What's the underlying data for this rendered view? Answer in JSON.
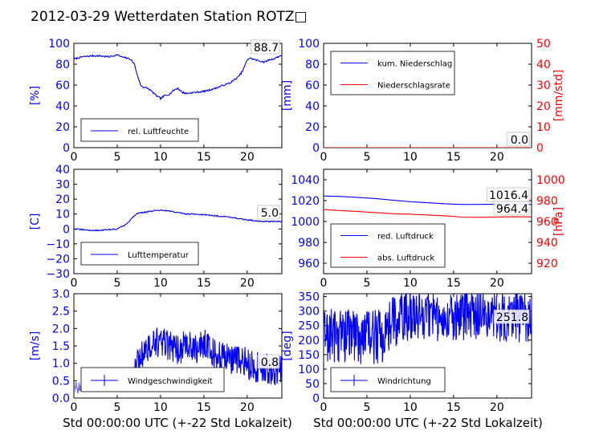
{
  "title": "2012-03-29 Wetterdaten Station ROTZ□",
  "xlabel": "Std 00:00:00 UTC (+-22 Std Lokalzeit)",
  "colors": {
    "primary": "#0000ff",
    "secondary": "#ff0000",
    "light": "#7777ff"
  },
  "chart_data": [
    {
      "type": "line",
      "title": "",
      "ylabel": "[%]",
      "ylim": [
        0,
        100
      ],
      "yticks": [
        0,
        20,
        40,
        60,
        80,
        100
      ],
      "xlim": [
        0,
        24
      ],
      "xticks": [
        0,
        5,
        10,
        15,
        20
      ],
      "current_value": "88.7",
      "legend_position": "lower-left",
      "series": [
        {
          "name": "rel. Luftfeuchte",
          "color": "#0000ff",
          "noise": 0.8,
          "x": [
            0,
            1,
            2,
            3,
            4,
            5,
            5.5,
            6,
            6.5,
            7,
            7.3,
            7.7,
            8,
            8.5,
            9,
            9.5,
            10,
            10.5,
            11,
            11.5,
            12,
            12.5,
            13,
            14,
            15,
            16,
            17,
            18,
            19,
            19.5,
            20,
            20.3,
            21,
            22,
            22.5,
            23,
            24
          ],
          "y": [
            85,
            87,
            88,
            88,
            87,
            89,
            87,
            86,
            85,
            80,
            70,
            60,
            58,
            57,
            54,
            50,
            47,
            50,
            51,
            55,
            57,
            53,
            52,
            53,
            54,
            56,
            59,
            62,
            68,
            74,
            84,
            86,
            84,
            82,
            84,
            85,
            88.7
          ]
        }
      ]
    },
    {
      "type": "line",
      "title": "",
      "ylabel": "[mm]",
      "ylim": [
        0,
        100
      ],
      "yticks": [
        0,
        20,
        40,
        60,
        80,
        100
      ],
      "y2label": "[mm/std]",
      "y2lim": [
        0,
        50
      ],
      "y2ticks": [
        0,
        10,
        20,
        30,
        40,
        50
      ],
      "xlim": [
        0,
        24
      ],
      "xticks": [
        0,
        5,
        10,
        15,
        20
      ],
      "current_values": [
        "0.0",
        "0.0"
      ],
      "legend_position": "upper-left",
      "series": [
        {
          "name": "kum. Niederschlag",
          "color": "#0000ff",
          "axis": "left",
          "x": [
            0,
            24
          ],
          "y": [
            0,
            0
          ]
        },
        {
          "name": "Niederschlagsrate",
          "color": "#ff0000",
          "axis": "right",
          "x": [
            0,
            24
          ],
          "y": [
            0,
            0
          ]
        }
      ]
    },
    {
      "type": "line",
      "title": "",
      "ylabel": "[C]",
      "ylim": [
        -30,
        40
      ],
      "yticks": [
        -30,
        -20,
        -10,
        0,
        10,
        20,
        30,
        40
      ],
      "xlim": [
        0,
        24
      ],
      "xticks": [
        0,
        5,
        10,
        15,
        20
      ],
      "current_value": "5.0",
      "legend_position": "lower-left",
      "series": [
        {
          "name": "Lufttemperatur",
          "color": "#0000ff",
          "noise": 0.4,
          "x": [
            0,
            1,
            2,
            3,
            4,
            5,
            6,
            6.5,
            7,
            7.5,
            8,
            9,
            10,
            11,
            12,
            13,
            14,
            15,
            16,
            17,
            18,
            19,
            20,
            21,
            22,
            23,
            24
          ],
          "y": [
            0,
            -0.5,
            -1,
            -1,
            -0.5,
            0,
            3,
            6,
            9,
            11,
            11,
            12,
            12.5,
            12,
            11,
            10,
            10,
            9.5,
            9,
            8.5,
            8,
            7,
            6,
            5.5,
            5,
            5,
            5
          ]
        }
      ]
    },
    {
      "type": "line",
      "title": "",
      "ylim": [
        950,
        1050
      ],
      "yticks": [
        960,
        980,
        1000,
        1020,
        1040
      ],
      "y2label": "[hPa]",
      "y2lim": [
        910,
        1010
      ],
      "y2ticks": [
        920,
        940,
        960,
        980,
        1000
      ],
      "xlim": [
        0,
        24
      ],
      "xticks": [
        0,
        5,
        10,
        15,
        20
      ],
      "current_values": [
        "1016.4",
        "964.4"
      ],
      "legend_position": "lower-left",
      "series": [
        {
          "name": "red. Luftdruck",
          "color": "#0000ff",
          "axis": "left",
          "x": [
            0,
            2,
            4,
            6,
            8,
            10,
            12,
            14,
            16,
            18,
            20,
            22,
            24
          ],
          "y": [
            1024.5,
            1024,
            1023,
            1022,
            1020.5,
            1019,
            1018,
            1017,
            1016.3,
            1016.4,
            1016.5,
            1016.4,
            1016.4
          ]
        },
        {
          "name": "abs. Luftdruck",
          "color": "#ff0000",
          "axis": "right",
          "x": [
            0,
            2,
            4,
            6,
            8,
            10,
            12,
            14,
            16,
            18,
            20,
            22,
            24
          ],
          "y": [
            971.5,
            970.5,
            969.5,
            968.5,
            967.5,
            967,
            966.2,
            965.5,
            964.2,
            964,
            964.3,
            964.5,
            964.4
          ]
        }
      ]
    },
    {
      "type": "line",
      "title": "",
      "ylabel": "[m/s]",
      "ylim": [
        0,
        3.0
      ],
      "yticks": [
        0.0,
        0.5,
        1.0,
        1.5,
        2.0,
        2.5,
        3.0
      ],
      "ytick_labels": [
        "0.0",
        "0.5",
        "1.0",
        "1.5",
        "2.0",
        "2.5",
        "3.0"
      ],
      "xlim": [
        0,
        24
      ],
      "xticks": [
        0,
        5,
        10,
        15,
        20
      ],
      "current_value": "0.8",
      "legend_position": "lower-left",
      "series": [
        {
          "name": "Windgeschwindigkeit",
          "color": "#0000ff",
          "noise": 0.45,
          "cross_markers": true,
          "x": [
            0,
            2,
            4,
            6,
            6.8,
            7.2,
            8,
            9,
            10,
            11,
            12,
            13,
            14,
            15,
            16,
            17,
            18,
            19,
            20,
            21,
            22,
            23,
            24
          ],
          "y": [
            0.3,
            0.35,
            0.4,
            0.35,
            0.5,
            0.9,
            1.3,
            1.5,
            1.6,
            1.5,
            1.4,
            1.5,
            1.4,
            1.6,
            1.3,
            1.2,
            1.1,
            1.1,
            1.0,
            0.9,
            0.9,
            0.8,
            0.8
          ]
        }
      ]
    },
    {
      "type": "line",
      "title": "",
      "ylabel": "[deg]",
      "ylim": [
        0,
        360
      ],
      "yticks": [
        0,
        50,
        100,
        150,
        200,
        250,
        300,
        350
      ],
      "xlim": [
        0,
        24
      ],
      "xticks": [
        0,
        5,
        10,
        15,
        20
      ],
      "current_value": "251.8",
      "legend_position": "lower-left",
      "series": [
        {
          "name": "Windrichtung",
          "color": "#0000ff",
          "noise": 90,
          "cross_markers": true,
          "x": [
            0,
            3,
            6,
            6.8,
            7.5,
            8.5,
            10,
            12,
            14,
            16,
            18,
            20,
            22,
            24
          ],
          "y": [
            220,
            220,
            210,
            220,
            250,
            270,
            290,
            285,
            280,
            285,
            290,
            285,
            280,
            280
          ]
        }
      ]
    }
  ]
}
